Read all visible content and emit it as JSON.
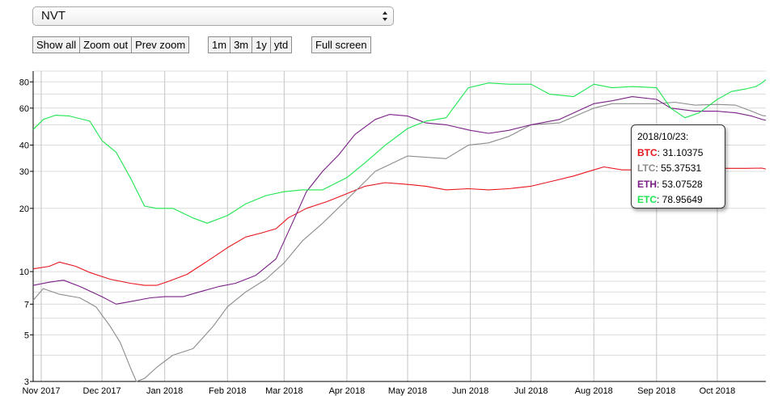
{
  "select": {
    "value": "NVT"
  },
  "zoom_buttons": [
    "Show all",
    "Zoom out",
    "Prev zoom"
  ],
  "range_buttons": [
    "1m",
    "3m",
    "1y",
    "ytd"
  ],
  "fullscreen_button": "Full screen",
  "icons": {
    "select_caret": "updown-caret-icon"
  },
  "tooltip": {
    "date": "2018/10/23:",
    "rows": [
      {
        "label": "BTC",
        "value": ": 31.10375",
        "color": "#e8141c"
      },
      {
        "label": "LTC",
        "value": ": 55.37531",
        "color": "#8c8c8c"
      },
      {
        "label": "ETH",
        "value": ": 53.07528",
        "color": "#7a1f86"
      },
      {
        "label": "ETC",
        "value": ": 78.95649",
        "color": "#1fe650"
      }
    ]
  },
  "chart_data": {
    "type": "line",
    "yscale": "log",
    "ylim": [
      3,
      90
    ],
    "xlim": [
      "2017-10-28",
      "2018-10-25"
    ],
    "grid": true,
    "legend": "none",
    "x_ticks": [
      "2017-11-01",
      "2017-12-01",
      "2018-01-01",
      "2018-02-01",
      "2018-03-01",
      "2018-04-01",
      "2018-05-01",
      "2018-06-01",
      "2018-07-01",
      "2018-08-01",
      "2018-09-01",
      "2018-10-01"
    ],
    "x_tick_labels": [
      "Nov 2017",
      "Dec 2017",
      "Jan 2018",
      "Feb 2018",
      "Mar 2018",
      "Apr 2018",
      "May 2018",
      "Jun 2018",
      "Jul 2018",
      "Aug 2018",
      "Sep 2018",
      "Oct 2018"
    ],
    "y_ticks": [
      3,
      5,
      7,
      10,
      20,
      30,
      40,
      60,
      80
    ],
    "y_tick_labels": [
      "3",
      "5",
      "7",
      "10",
      "20",
      "30",
      "40",
      "60",
      "80"
    ],
    "series": [
      {
        "name": "BTC",
        "color": "#e8141c",
        "points": [
          [
            "2017-10-28",
            10.3
          ],
          [
            "2017-11-05",
            10.6
          ],
          [
            "2017-11-10",
            11.1
          ],
          [
            "2017-11-18",
            10.6
          ],
          [
            "2017-11-25",
            9.9
          ],
          [
            "2017-12-05",
            9.2
          ],
          [
            "2017-12-15",
            8.8
          ],
          [
            "2017-12-22",
            8.6
          ],
          [
            "2017-12-28",
            8.6
          ],
          [
            "2018-01-03",
            9.0
          ],
          [
            "2018-01-12",
            9.7
          ],
          [
            "2018-01-22",
            11.2
          ],
          [
            "2018-02-01",
            13.0
          ],
          [
            "2018-02-10",
            14.6
          ],
          [
            "2018-02-18",
            15.3
          ],
          [
            "2018-02-25",
            16.0
          ],
          [
            "2018-03-03",
            18.0
          ],
          [
            "2018-03-12",
            20.0
          ],
          [
            "2018-03-22",
            21.5
          ],
          [
            "2018-04-01",
            23.5
          ],
          [
            "2018-04-10",
            25.5
          ],
          [
            "2018-04-20",
            26.5
          ],
          [
            "2018-05-01",
            26.0
          ],
          [
            "2018-05-10",
            25.5
          ],
          [
            "2018-05-20",
            24.5
          ],
          [
            "2018-05-31",
            24.8
          ],
          [
            "2018-06-10",
            24.5
          ],
          [
            "2018-06-20",
            24.8
          ],
          [
            "2018-07-01",
            25.5
          ],
          [
            "2018-07-12",
            27.0
          ],
          [
            "2018-07-22",
            28.5
          ],
          [
            "2018-08-01",
            30.5
          ],
          [
            "2018-08-06",
            31.5
          ],
          [
            "2018-08-15",
            30.5
          ],
          [
            "2018-08-25",
            30.5
          ],
          [
            "2018-09-05",
            31.0
          ],
          [
            "2018-09-15",
            30.8
          ],
          [
            "2018-09-25",
            30.5
          ],
          [
            "2018-10-05",
            31.0
          ],
          [
            "2018-10-15",
            31.0
          ],
          [
            "2018-10-23",
            31.1
          ],
          [
            "2018-10-25",
            30.8
          ]
        ]
      },
      {
        "name": "LTC",
        "color": "#8c8c8c",
        "points": [
          [
            "2017-10-28",
            7.3
          ],
          [
            "2017-11-02",
            8.3
          ],
          [
            "2017-11-10",
            7.8
          ],
          [
            "2017-11-20",
            7.5
          ],
          [
            "2017-11-28",
            6.8
          ],
          [
            "2017-12-05",
            5.5
          ],
          [
            "2017-12-10",
            4.6
          ],
          [
            "2017-12-15",
            3.5
          ],
          [
            "2017-12-18",
            3.0
          ],
          [
            "2017-12-22",
            3.1
          ],
          [
            "2017-12-28",
            3.5
          ],
          [
            "2018-01-05",
            4.0
          ],
          [
            "2018-01-15",
            4.3
          ],
          [
            "2018-01-25",
            5.5
          ],
          [
            "2018-02-01",
            6.8
          ],
          [
            "2018-02-10",
            8.0
          ],
          [
            "2018-02-20",
            9.2
          ],
          [
            "2018-03-01",
            11.0
          ],
          [
            "2018-03-10",
            14.0
          ],
          [
            "2018-03-20",
            17.0
          ],
          [
            "2018-04-01",
            22.0
          ],
          [
            "2018-04-15",
            30.0
          ],
          [
            "2018-05-01",
            35.5
          ],
          [
            "2018-05-10",
            35.0
          ],
          [
            "2018-05-20",
            34.5
          ],
          [
            "2018-05-31",
            40.0
          ],
          [
            "2018-06-10",
            41.0
          ],
          [
            "2018-06-20",
            44.0
          ],
          [
            "2018-07-01",
            50.0
          ],
          [
            "2018-07-15",
            51.0
          ],
          [
            "2018-08-01",
            60.0
          ],
          [
            "2018-08-10",
            63.0
          ],
          [
            "2018-08-20",
            63.0
          ],
          [
            "2018-09-01",
            63.0
          ],
          [
            "2018-09-10",
            64.0
          ],
          [
            "2018-09-20",
            62.0
          ],
          [
            "2018-10-01",
            62.5
          ],
          [
            "2018-10-10",
            62.0
          ],
          [
            "2018-10-18",
            58.0
          ],
          [
            "2018-10-23",
            55.4
          ],
          [
            "2018-10-25",
            55.0
          ]
        ]
      },
      {
        "name": "ETH",
        "color": "#7a1f86",
        "points": [
          [
            "2017-10-28",
            8.6
          ],
          [
            "2017-11-05",
            8.9
          ],
          [
            "2017-11-12",
            9.1
          ],
          [
            "2017-11-20",
            8.5
          ],
          [
            "2017-12-01",
            7.6
          ],
          [
            "2017-12-08",
            7.0
          ],
          [
            "2017-12-15",
            7.2
          ],
          [
            "2017-12-25",
            7.5
          ],
          [
            "2018-01-01",
            7.6
          ],
          [
            "2018-01-10",
            7.6
          ],
          [
            "2018-01-18",
            8.0
          ],
          [
            "2018-01-28",
            8.5
          ],
          [
            "2018-02-05",
            8.8
          ],
          [
            "2018-02-15",
            9.6
          ],
          [
            "2018-02-25",
            11.5
          ],
          [
            "2018-03-05",
            17.0
          ],
          [
            "2018-03-12",
            24.0
          ],
          [
            "2018-03-20",
            30.0
          ],
          [
            "2018-03-28",
            36.0
          ],
          [
            "2018-04-05",
            45.0
          ],
          [
            "2018-04-15",
            53.0
          ],
          [
            "2018-04-22",
            56.0
          ],
          [
            "2018-05-01",
            55.0
          ],
          [
            "2018-05-10",
            51.0
          ],
          [
            "2018-05-20",
            50.0
          ],
          [
            "2018-06-01",
            47.0
          ],
          [
            "2018-06-10",
            45.5
          ],
          [
            "2018-06-20",
            47.0
          ],
          [
            "2018-07-01",
            50.0
          ],
          [
            "2018-07-15",
            53.0
          ],
          [
            "2018-08-01",
            63.0
          ],
          [
            "2018-08-10",
            65.0
          ],
          [
            "2018-08-20",
            68.0
          ],
          [
            "2018-09-01",
            66.0
          ],
          [
            "2018-09-08",
            60.0
          ],
          [
            "2018-09-20",
            58.0
          ],
          [
            "2018-10-01",
            58.0
          ],
          [
            "2018-10-10",
            57.0
          ],
          [
            "2018-10-18",
            55.0
          ],
          [
            "2018-10-23",
            53.1
          ],
          [
            "2018-10-25",
            52.5
          ]
        ]
      },
      {
        "name": "ETC",
        "color": "#1fe650",
        "points": [
          [
            "2017-10-28",
            47.5
          ],
          [
            "2017-11-02",
            53.0
          ],
          [
            "2017-11-08",
            55.5
          ],
          [
            "2017-11-15",
            55.0
          ],
          [
            "2017-11-25",
            52.0
          ],
          [
            "2017-12-01",
            42.0
          ],
          [
            "2017-12-08",
            37.0
          ],
          [
            "2017-12-15",
            28.0
          ],
          [
            "2017-12-22",
            20.5
          ],
          [
            "2017-12-28",
            20.0
          ],
          [
            "2018-01-05",
            20.0
          ],
          [
            "2018-01-15",
            18.0
          ],
          [
            "2018-01-22",
            17.0
          ],
          [
            "2018-02-01",
            18.5
          ],
          [
            "2018-02-10",
            21.0
          ],
          [
            "2018-02-20",
            23.0
          ],
          [
            "2018-03-01",
            24.0
          ],
          [
            "2018-03-10",
            24.5
          ],
          [
            "2018-03-20",
            24.5
          ],
          [
            "2018-04-01",
            28.0
          ],
          [
            "2018-04-10",
            33.0
          ],
          [
            "2018-04-20",
            40.0
          ],
          [
            "2018-05-01",
            48.0
          ],
          [
            "2018-05-10",
            52.0
          ],
          [
            "2018-05-20",
            54.0
          ],
          [
            "2018-05-31",
            75.0
          ],
          [
            "2018-06-10",
            79.0
          ],
          [
            "2018-06-20",
            78.0
          ],
          [
            "2018-07-01",
            78.0
          ],
          [
            "2018-07-10",
            70.0
          ],
          [
            "2018-07-22",
            68.0
          ],
          [
            "2018-08-01",
            78.0
          ],
          [
            "2018-08-10",
            75.0
          ],
          [
            "2018-08-20",
            76.0
          ],
          [
            "2018-09-01",
            75.0
          ],
          [
            "2018-09-08",
            60.0
          ],
          [
            "2018-09-15",
            54.0
          ],
          [
            "2018-09-22",
            57.0
          ],
          [
            "2018-10-01",
            66.0
          ],
          [
            "2018-10-08",
            72.0
          ],
          [
            "2018-10-15",
            74.0
          ],
          [
            "2018-10-20",
            76.0
          ],
          [
            "2018-10-23",
            79.0
          ],
          [
            "2018-10-25",
            82.0
          ]
        ]
      }
    ]
  }
}
